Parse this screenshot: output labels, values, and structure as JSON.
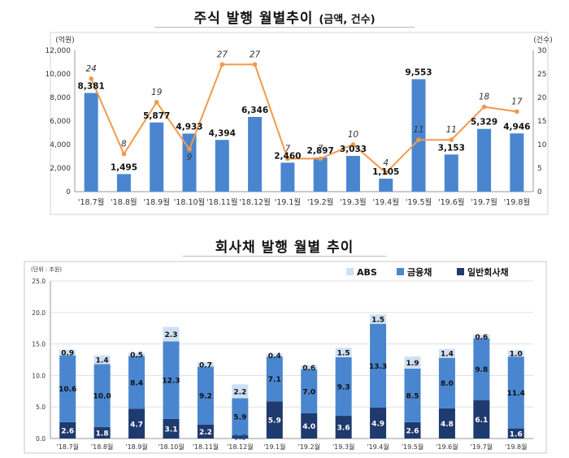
{
  "chart_data": [
    {
      "type": "bar+line",
      "title": "주식 발행 월별추이",
      "subtitle": "(금액, 건수)",
      "y_left_label": "(억원)",
      "y_right_label": "(건수)",
      "y_left_lim": [
        0,
        12000
      ],
      "y_left_ticks": [
        "0",
        "2,000",
        "4,000",
        "6,000",
        "8,000",
        "10,000",
        "12,000"
      ],
      "y_right_lim": [
        0,
        30
      ],
      "y_right_ticks": [
        "0",
        "5",
        "10",
        "15",
        "20",
        "25",
        "30"
      ],
      "grid": false,
      "categories": [
        "'18.7월",
        "'18.8월",
        "'18.9월",
        "'18.10월",
        "'18.11월",
        "'18.12월",
        "'19.1월",
        "'19.2월",
        "'19.3월",
        "'19.4월",
        "'19.5월",
        "'19.6월",
        "'19.7월",
        "'19.8월"
      ],
      "series": [
        {
          "kind": "bar",
          "values": [
            8381,
            1495,
            5877,
            4933,
            4394,
            6346,
            2460,
            2897,
            3033,
            1105,
            9553,
            3153,
            5329,
            4946
          ],
          "labels": [
            "8,381",
            "1,495",
            "5,877",
            "4,933",
            "4,394",
            "6,346",
            "2,460",
            "2,897",
            "3,033",
            "1,105",
            "9,553",
            "3,153",
            "5,329",
            "4,946"
          ],
          "color": "#4a86cf"
        },
        {
          "kind": "line",
          "axis": "right",
          "values": [
            24,
            8,
            19,
            9,
            27,
            27,
            7,
            7,
            10,
            4,
            11,
            11,
            18,
            17
          ],
          "labels": [
            "24",
            "8",
            "19",
            "9",
            "27",
            "27",
            "7",
            "7",
            "10",
            "4",
            "11",
            "11",
            "18",
            "17"
          ],
          "color": "#f2994a"
        }
      ]
    },
    {
      "type": "stacked-bar",
      "title": "회사채 발행 월별 추이",
      "unit_label": "(단위 : 조원)",
      "ylim": [
        0,
        25
      ],
      "y_ticks": [
        "0.0",
        "5.0",
        "10.0",
        "15.0",
        "20.0",
        "25.0"
      ],
      "grid": true,
      "legend_position": "top-right",
      "categories": [
        "'18.7월",
        "'18.8월",
        "'18.9월",
        "'18.10월",
        "'18.11월",
        "'18.12월",
        "'19.1월",
        "'19.2월",
        "'19.3월",
        "'19.4월",
        "'19.5월",
        "'19.6월",
        "'19.7월",
        "'19.8월"
      ],
      "series": [
        {
          "name": "일반회사채",
          "values": [
            2.6,
            1.8,
            4.7,
            3.1,
            2.2,
            0.5,
            5.9,
            4.0,
            3.6,
            4.9,
            2.6,
            4.8,
            6.1,
            1.6
          ],
          "labels": [
            "2.6",
            "1.8",
            "4.7",
            "3.1",
            "2.2",
            "0.5",
            "5.9",
            "4.0",
            "3.6",
            "4.9",
            "2.6",
            "4.8",
            "6.1",
            "1.6"
          ],
          "color": "#1f3a6e"
        },
        {
          "name": "금융채",
          "values": [
            10.6,
            10.0,
            8.4,
            12.3,
            9.2,
            5.9,
            7.1,
            7.0,
            9.3,
            13.3,
            8.5,
            8.0,
            9.8,
            11.4
          ],
          "labels": [
            "10.6",
            "10.0",
            "8.4",
            "12.3",
            "9.2",
            "5.9",
            "7.1",
            "7.0",
            "9.3",
            "13.3",
            "8.5",
            "8.0",
            "9.8",
            "11.4"
          ],
          "color": "#4a86cf"
        },
        {
          "name": "ABS",
          "values": [
            0.9,
            1.4,
            0.5,
            2.3,
            0.7,
            2.2,
            0.4,
            0.6,
            1.5,
            1.5,
            1.9,
            1.4,
            0.6,
            1.0
          ],
          "labels": [
            "0.9",
            "1.4",
            "0.5",
            "2.3",
            "0.7",
            "2.2",
            "0.4",
            "0.6",
            "1.5",
            "1.5",
            "1.9",
            "1.4",
            "0.6",
            "1.0"
          ],
          "color": "#cfe0f4"
        }
      ]
    }
  ]
}
